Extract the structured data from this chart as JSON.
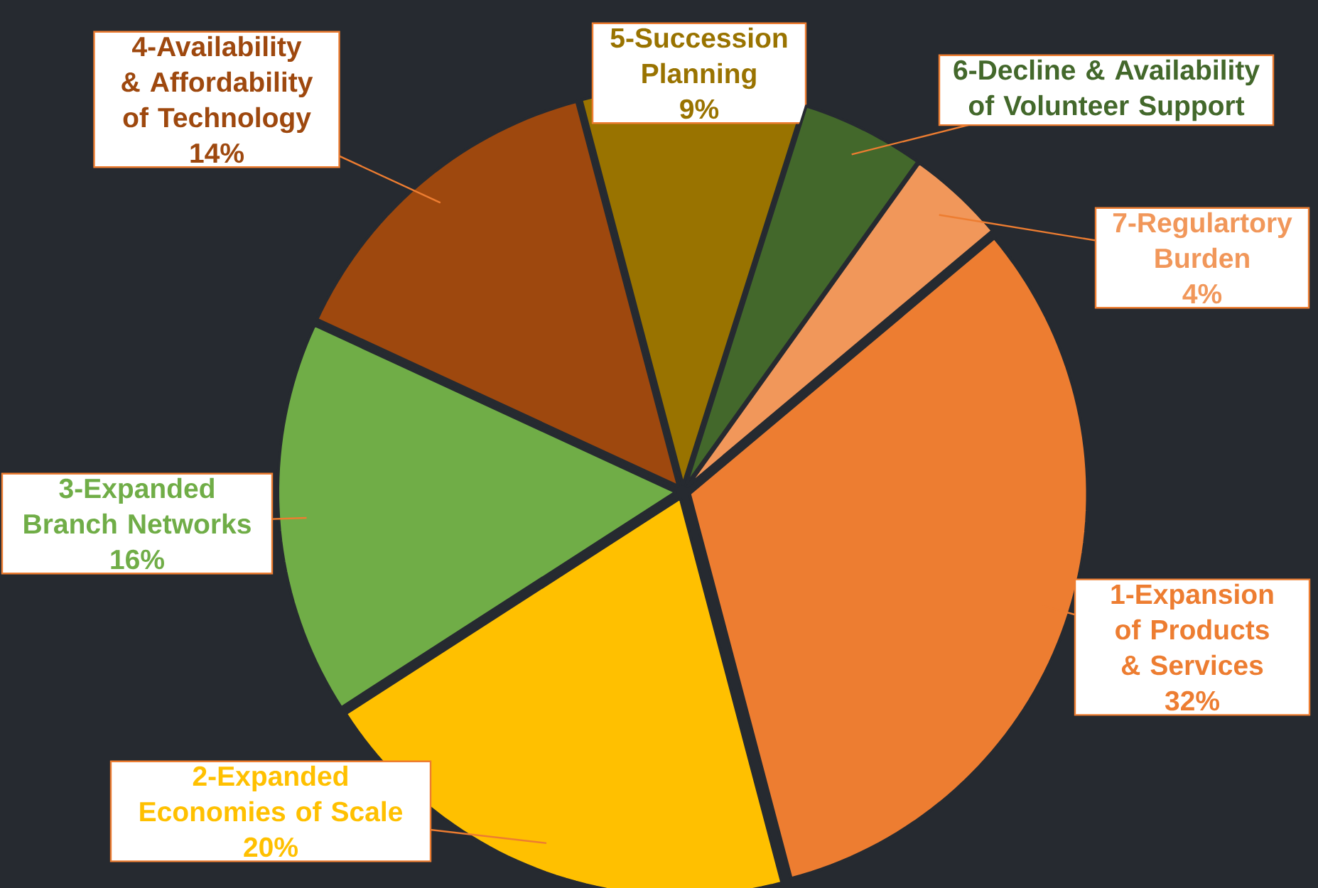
{
  "chart_data": {
    "type": "pie",
    "categories": [
      "1-Expansion of Products & Services",
      "2-Expanded Economies of Scale",
      "3-Expanded Branch Networks",
      "4-Availability & Affordability of Technology",
      "5-Succession Planning",
      "6-Decline & Availability of Volunteer Support",
      "7-Regulartory Burden"
    ],
    "values": [
      32,
      20,
      16,
      14,
      9,
      5,
      4
    ],
    "value_labels": [
      "32%",
      "20%",
      "16%",
      "14%",
      "9%",
      null,
      "4%"
    ],
    "colors": [
      "#ed7d31",
      "#ffc000",
      "#70ad47",
      "#9e480e",
      "#997300",
      "#43682b",
      "#f1975a"
    ]
  }
}
